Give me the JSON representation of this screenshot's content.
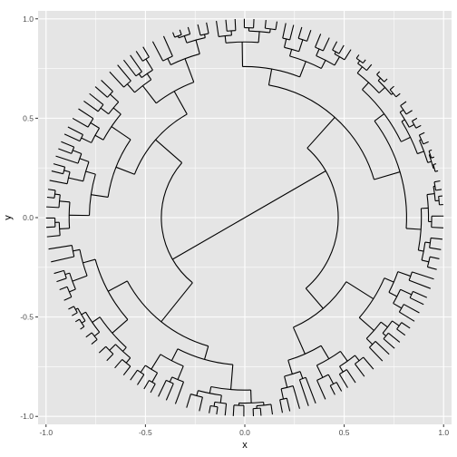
{
  "chart_data": {
    "type": "dendrogram",
    "layout": "circular",
    "xlabel": "x",
    "ylabel": "y",
    "xlim": [
      -1.04,
      1.04
    ],
    "ylim": [
      -1.04,
      1.04
    ],
    "x_ticks": [
      -1.0,
      -0.5,
      0.0,
      0.5,
      1.0
    ],
    "x_tick_labels": [
      "-1.0",
      "-0.5",
      "0.0",
      "0.5",
      "1.0"
    ],
    "y_ticks": [
      1.0,
      0.5,
      0.0,
      -0.5,
      -1.0
    ],
    "y_tick_labels": [
      "1.0",
      "0.5",
      "0.0",
      "-0.5",
      "-1.0"
    ],
    "grid": true,
    "leaf_radius": 1.0,
    "root": [
      0,
      0
    ],
    "main_branches": [
      {
        "start_angle_deg": 30,
        "end_angle_deg": 30,
        "from_radius": 0,
        "to_radius": 0.47
      },
      {
        "start_angle_deg": 210,
        "end_angle_deg": 210,
        "from_radius": 0,
        "to_radius": 0.42
      }
    ],
    "colors": {
      "panel": "#e5e5e5",
      "grid": "#ffffff",
      "branch": "#000000"
    }
  }
}
